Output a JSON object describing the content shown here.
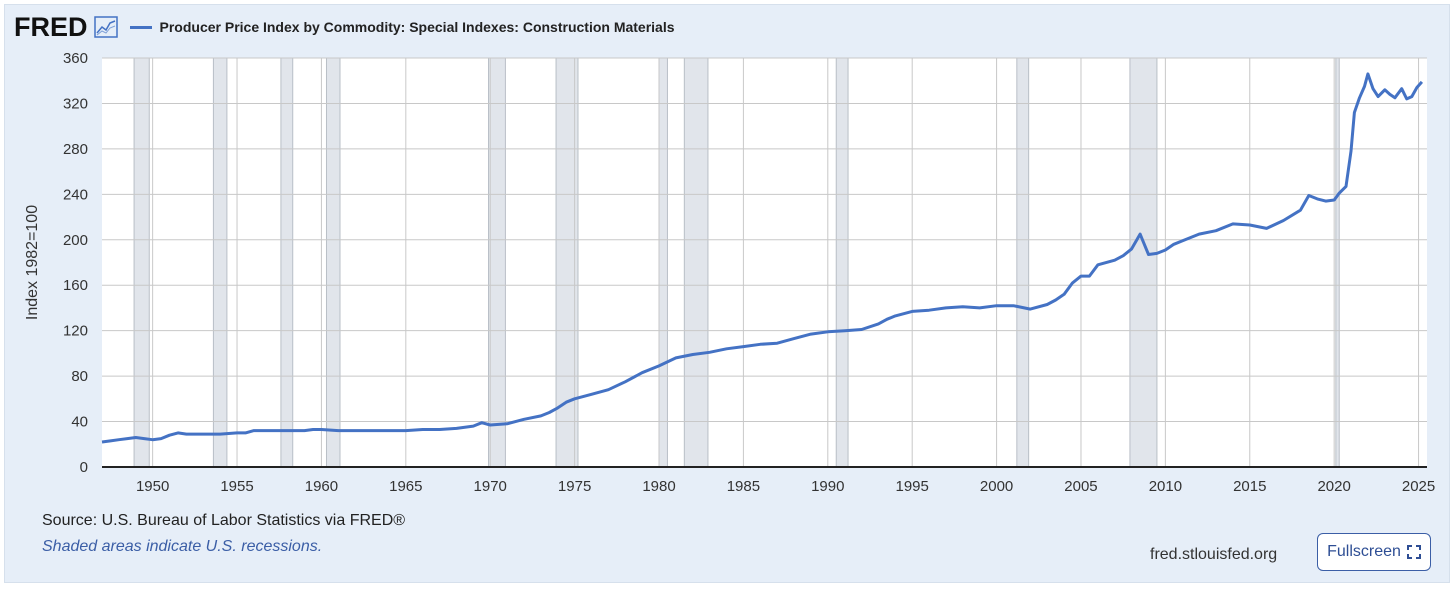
{
  "header": {
    "logo_text": "FRED",
    "series_title": "Producer Price Index by Commodity: Special Indexes: Construction Materials"
  },
  "footer": {
    "source": "Source: U.S. Bureau of Labor Statistics via FRED®",
    "note": "Shaded areas indicate U.S. recessions.",
    "site": "fred.stlouisfed.org",
    "fullscreen_label": "Fullscreen"
  },
  "colors": {
    "line": "#4472c4",
    "recession": "#e1e5eb",
    "background": "#e6eef8"
  },
  "icons": [
    "chart-line-icon",
    "fullscreen-icon"
  ],
  "chart_data": {
    "type": "line",
    "title": "Producer Price Index by Commodity: Special Indexes: Construction Materials",
    "xlabel": "",
    "ylabel": "Index 1982=100",
    "xlim": [
      1947.0,
      2025.5
    ],
    "ylim": [
      0,
      360
    ],
    "yticks": [
      0,
      40,
      80,
      120,
      160,
      200,
      240,
      280,
      320,
      360
    ],
    "xticks": [
      1950,
      1955,
      1960,
      1965,
      1970,
      1975,
      1980,
      1985,
      1990,
      1995,
      2000,
      2005,
      2010,
      2015,
      2020,
      2025
    ],
    "grid": true,
    "recessions": [
      [
        1948.9,
        1949.8
      ],
      [
        1953.6,
        1954.4
      ],
      [
        1957.6,
        1958.3
      ],
      [
        1960.3,
        1961.1
      ],
      [
        1969.9,
        1970.9
      ],
      [
        1973.9,
        1975.2
      ],
      [
        1980.0,
        1980.5
      ],
      [
        1981.5,
        1982.9
      ],
      [
        1990.5,
        1991.2
      ],
      [
        2001.2,
        2001.9
      ],
      [
        2007.9,
        2009.5
      ],
      [
        2020.1,
        2020.3
      ]
    ],
    "series": [
      {
        "name": "Producer Price Index by Commodity: Special Indexes: Construction Materials",
        "x": [
          1947.0,
          1947.5,
          1948.0,
          1948.5,
          1949.0,
          1949.5,
          1950.0,
          1950.5,
          1951.0,
          1951.5,
          1952.0,
          1953.0,
          1954.0,
          1955.0,
          1955.5,
          1956.0,
          1957.0,
          1958.0,
          1959.0,
          1959.5,
          1960.0,
          1961.0,
          1962.0,
          1963.0,
          1964.0,
          1965.0,
          1966.0,
          1967.0,
          1968.0,
          1969.0,
          1969.5,
          1970.0,
          1971.0,
          1971.5,
          1972.0,
          1973.0,
          1973.5,
          1974.0,
          1974.5,
          1975.0,
          1975.5,
          1976.0,
          1977.0,
          1978.0,
          1979.0,
          1980.0,
          1981.0,
          1982.0,
          1983.0,
          1984.0,
          1985.0,
          1986.0,
          1987.0,
          1988.0,
          1989.0,
          1990.0,
          1991.0,
          1992.0,
          1993.0,
          1993.5,
          1994.0,
          1995.0,
          1996.0,
          1997.0,
          1998.0,
          1999.0,
          2000.0,
          2001.0,
          2002.0,
          2003.0,
          2003.5,
          2004.0,
          2004.5,
          2005.0,
          2005.5,
          2006.0,
          2007.0,
          2007.5,
          2008.0,
          2008.5,
          2009.0,
          2009.5,
          2010.0,
          2010.5,
          2011.0,
          2011.5,
          2012.0,
          2013.0,
          2014.0,
          2015.0,
          2016.0,
          2017.0,
          2018.0,
          2018.5,
          2019.0,
          2019.5,
          2020.0,
          2020.3,
          2020.7,
          2021.0,
          2021.2,
          2021.5,
          2021.8,
          2022.0,
          2022.3,
          2022.6,
          2023.0,
          2023.3,
          2023.6,
          2024.0,
          2024.3,
          2024.6,
          2024.9,
          2025.2
        ],
        "values": [
          22,
          23,
          24,
          25,
          26,
          25,
          24,
          25,
          28,
          30,
          29,
          29,
          29,
          30,
          30,
          32,
          32,
          32,
          32,
          33,
          33,
          32,
          32,
          32,
          32,
          32,
          33,
          33,
          34,
          36,
          39,
          37,
          38,
          40,
          42,
          45,
          48,
          52,
          57,
          60,
          62,
          64,
          68,
          75,
          83,
          89,
          96,
          99,
          101,
          104,
          106,
          108,
          109,
          113,
          117,
          119,
          120,
          121,
          126,
          130,
          133,
          137,
          138,
          140,
          141,
          140,
          142,
          142,
          139,
          143,
          147,
          152,
          162,
          168,
          168,
          178,
          182,
          186,
          192,
          205,
          187,
          188,
          191,
          196,
          199,
          202,
          205,
          208,
          214,
          213,
          210,
          217,
          226,
          239,
          236,
          234,
          235,
          241,
          247,
          278,
          312,
          325,
          335,
          346,
          333,
          326,
          332,
          328,
          325,
          333,
          324,
          326,
          334,
          339
        ]
      }
    ]
  }
}
